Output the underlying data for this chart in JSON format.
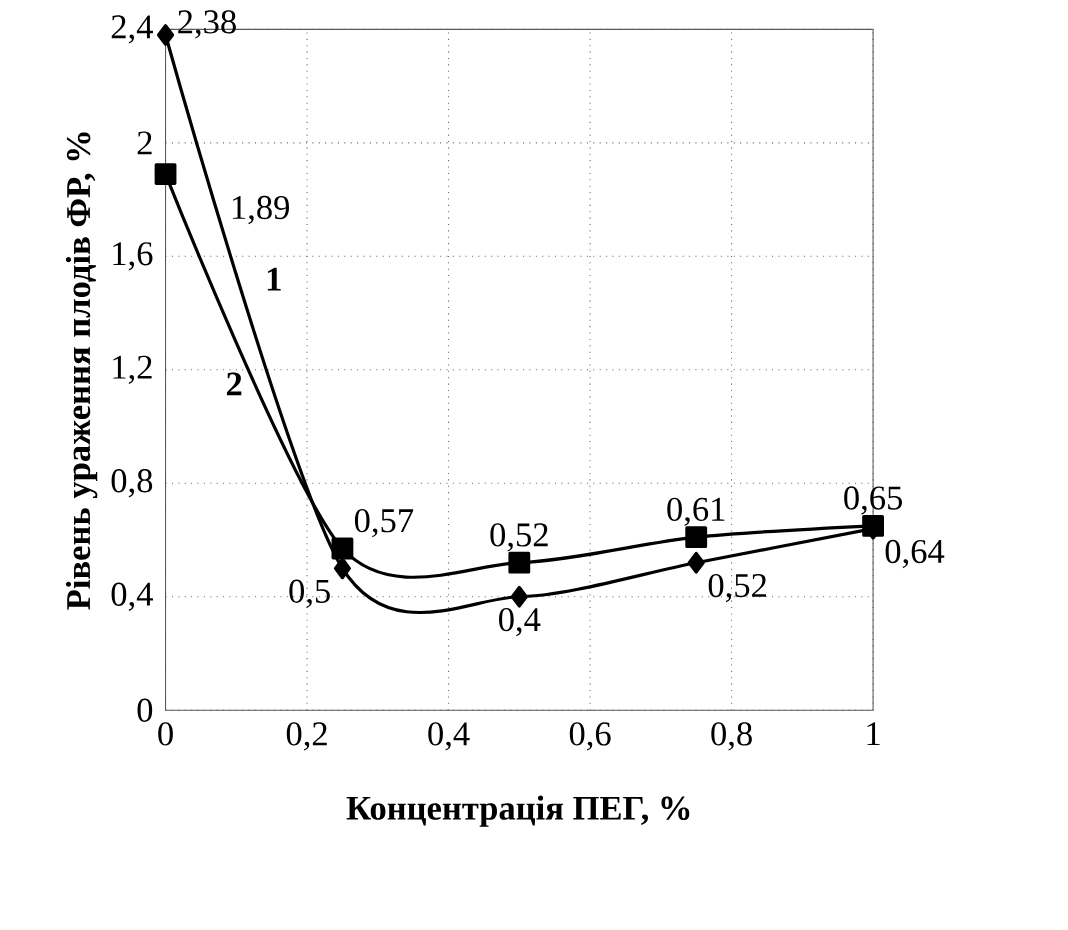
{
  "chart_data": {
    "type": "line",
    "xlabel": "Концентрація ПЕГ, %",
    "ylabel": "Рівень ураження плодів ФР, %",
    "x": [
      0,
      0.25,
      0.5,
      0.75,
      1
    ],
    "series": [
      {
        "name": "1",
        "color": "#000000",
        "marker": "diamond",
        "values": [
          2.38,
          0.5,
          0.4,
          0.52,
          0.64
        ],
        "value_labels": [
          "2,38",
          "0,5",
          "0,4",
          "0,52",
          "0,64"
        ]
      },
      {
        "name": "2",
        "color": "#000000",
        "marker": "square",
        "values": [
          1.89,
          0.57,
          0.52,
          0.61,
          0.65
        ],
        "value_labels": [
          "1,89",
          "0,57",
          "0,52",
          "0,61",
          "0,65"
        ]
      }
    ],
    "xlim": [
      0,
      1
    ],
    "ylim": [
      0,
      2.4
    ],
    "xticks": [
      0,
      {
        "value": 0.2,
        "label": "0,2"
      },
      {
        "value": 0.4,
        "label": "0,4"
      },
      {
        "value": 0.6,
        "label": "0,6"
      },
      {
        "value": 0.8,
        "label": "0,8"
      },
      1
    ],
    "yticks": [
      0,
      {
        "value": 0.4,
        "label": "0,4"
      },
      {
        "value": 0.8,
        "label": "0,8"
      },
      {
        "value": 1.2,
        "label": "1,2"
      },
      {
        "value": 1.6,
        "label": "1,6"
      },
      2,
      {
        "value": 2.4,
        "label": "2,4"
      }
    ],
    "grid": true,
    "line_style": "solid"
  }
}
